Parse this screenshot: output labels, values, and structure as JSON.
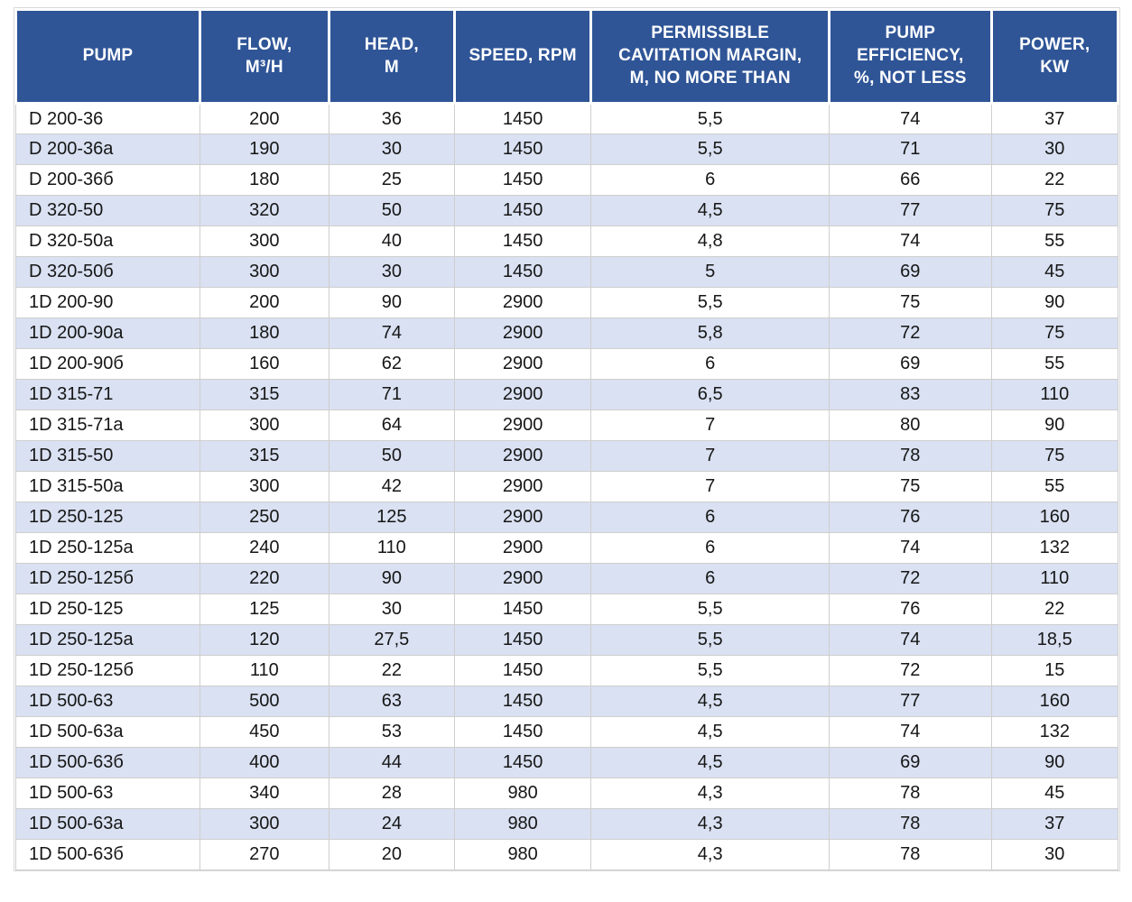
{
  "table": {
    "title": "pump-specifications-table",
    "colors": {
      "header_bg": "#2F5597",
      "header_text": "#FFFFFF",
      "stripe_even": "#D9E1F2",
      "stripe_odd": "#FFFFFF",
      "grid": "#D0CECE"
    },
    "header": {
      "columns": [
        {
          "id": "pump",
          "label": "PUMP"
        },
        {
          "id": "flow",
          "label": "FLOW,\nM³/H"
        },
        {
          "id": "head",
          "label": "HEAD,\nM"
        },
        {
          "id": "speed",
          "label": "SPEED, RPM"
        },
        {
          "id": "cavitation",
          "label": "PERMISSIBLE\nCAVITATION MARGIN,\nM, NO MORE THAN"
        },
        {
          "id": "efficiency",
          "label": "PUMP\nEFFICIENCY,\n%, NOT LESS"
        },
        {
          "id": "power",
          "label": "POWER,\nKW"
        }
      ]
    },
    "rows": [
      [
        "D 200-36",
        "200",
        "36",
        "1450",
        "5,5",
        "74",
        "37"
      ],
      [
        "D 200-36а",
        "190",
        "30",
        "1450",
        "5,5",
        "71",
        "30"
      ],
      [
        "D 200-36б",
        "180",
        "25",
        "1450",
        "6",
        "66",
        "22"
      ],
      [
        "D 320-50",
        "320",
        "50",
        "1450",
        "4,5",
        "77",
        "75"
      ],
      [
        "D 320-50а",
        "300",
        "40",
        "1450",
        "4,8",
        "74",
        "55"
      ],
      [
        "D 320-50б",
        "300",
        "30",
        "1450",
        "5",
        "69",
        "45"
      ],
      [
        "1D 200-90",
        "200",
        "90",
        "2900",
        "5,5",
        "75",
        "90"
      ],
      [
        "1D 200-90а",
        "180",
        "74",
        "2900",
        "5,8",
        "72",
        "75"
      ],
      [
        "1D 200-90б",
        "160",
        "62",
        "2900",
        "6",
        "69",
        "55"
      ],
      [
        "1D 315-71",
        "315",
        "71",
        "2900",
        "6,5",
        "83",
        "110"
      ],
      [
        "1D 315-71а",
        "300",
        "64",
        "2900",
        "7",
        "80",
        "90"
      ],
      [
        "1D 315-50",
        "315",
        "50",
        "2900",
        "7",
        "78",
        "75"
      ],
      [
        "1D 315-50а",
        "300",
        "42",
        "2900",
        "7",
        "75",
        "55"
      ],
      [
        "1D 250-125",
        "250",
        "125",
        "2900",
        "6",
        "76",
        "160"
      ],
      [
        "1D 250-125а",
        "240",
        "110",
        "2900",
        "6",
        "74",
        "132"
      ],
      [
        "1D 250-125б",
        "220",
        "90",
        "2900",
        "6",
        "72",
        "110"
      ],
      [
        "1D 250-125",
        "125",
        "30",
        "1450",
        "5,5",
        "76",
        "22"
      ],
      [
        "1D 250-125а",
        "120",
        "27,5",
        "1450",
        "5,5",
        "74",
        "18,5"
      ],
      [
        "1D 250-125б",
        "110",
        "22",
        "1450",
        "5,5",
        "72",
        "15"
      ],
      [
        "1D 500-63",
        "500",
        "63",
        "1450",
        "4,5",
        "77",
        "160"
      ],
      [
        "1D 500-63а",
        "450",
        "53",
        "1450",
        "4,5",
        "74",
        "132"
      ],
      [
        "1D 500-63б",
        "400",
        "44",
        "1450",
        "4,5",
        "69",
        "90"
      ],
      [
        "1D 500-63",
        "340",
        "28",
        "980",
        "4,3",
        "78",
        "45"
      ],
      [
        "1D 500-63а",
        "300",
        "24",
        "980",
        "4,3",
        "78",
        "37"
      ],
      [
        "1D 500-63б",
        "270",
        "20",
        "980",
        "4,3",
        "78",
        "30"
      ]
    ]
  }
}
